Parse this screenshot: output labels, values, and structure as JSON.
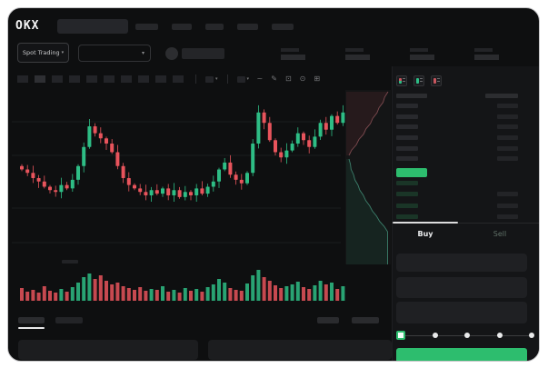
{
  "brand": {
    "logo_text": "OKX"
  },
  "market_selector": {
    "label": "Spot Trading",
    "chevron": "▾"
  },
  "pair_dropdown": {
    "chevron": "▾"
  },
  "chart_toolbar": {
    "chevron": "▾",
    "icons": [
      {
        "name": "wave-icon",
        "glyph": "~"
      },
      {
        "name": "draw-icon",
        "glyph": "✎"
      },
      {
        "name": "camera-icon",
        "glyph": "⊡"
      },
      {
        "name": "settings-icon",
        "glyph": "⊙"
      },
      {
        "name": "fullscreen-icon",
        "glyph": "⊞"
      }
    ]
  },
  "trade_panel": {
    "tabs": {
      "buy": "Buy",
      "sell": "Sell"
    },
    "slider_positions": 5,
    "slider_selected_index": 0
  },
  "colors": {
    "up_green": "#2ebd85",
    "down_red": "#e8545c",
    "accent_button_green": "#2dbd6e",
    "window_bg": "#0e0f10",
    "panel_bg": "#141517"
  },
  "chart_data": {
    "type": "candlestick_with_volume",
    "title": "",
    "axis_labels_visible": false,
    "grid": "faint horizontal lines",
    "first_open": 57,
    "open_rule": "each candle opens at previous close",
    "closes": [
      55,
      53,
      50,
      48,
      45,
      43,
      42,
      46,
      44,
      49,
      57,
      68,
      80,
      76,
      73,
      70,
      65,
      57,
      50,
      46,
      44,
      42,
      40,
      43,
      41,
      44,
      40,
      43,
      39,
      42,
      40,
      44,
      41,
      45,
      48,
      55,
      59,
      52,
      49,
      47,
      53,
      70,
      88,
      82,
      72,
      65,
      62,
      66,
      70,
      76,
      72,
      68,
      74,
      82,
      78,
      86,
      82,
      88
    ],
    "volumes": [
      14,
      10,
      12,
      9,
      16,
      11,
      9,
      13,
      10,
      15,
      20,
      26,
      30,
      24,
      28,
      22,
      18,
      20,
      16,
      14,
      12,
      15,
      11,
      13,
      12,
      16,
      10,
      12,
      9,
      14,
      11,
      13,
      10,
      15,
      18,
      24,
      20,
      14,
      12,
      11,
      19,
      28,
      34,
      26,
      22,
      17,
      14,
      16,
      18,
      21,
      15,
      13,
      17,
      22,
      18,
      20,
      13,
      16
    ],
    "up_color": "#2ebd85",
    "down_color": "#e8545c",
    "depth_overlay": {
      "position": "right edge of chart",
      "asks_color": "#e8545c",
      "bids_color": "#2ebd85"
    }
  }
}
